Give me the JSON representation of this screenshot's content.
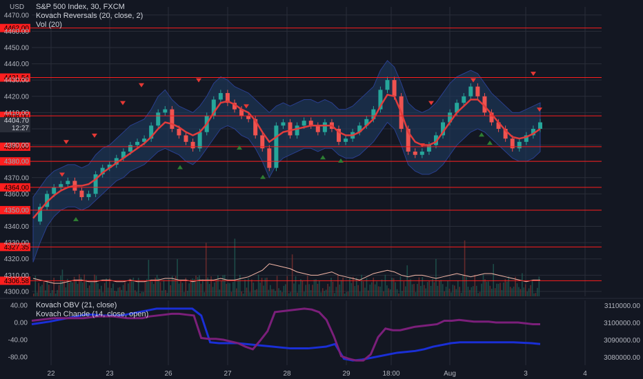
{
  "header": {
    "currency": "USD",
    "symbol_line": "S&P 500 Index, 30, FXCM",
    "indicator_1": "Kovach Reversals (20, close, 2)",
    "indicator_2": "Vol (20)",
    "indicator_3": "Kovach OBV (21, close)",
    "indicator_4": "Kovach Chande (14, close, open)"
  },
  "price_badge": {
    "price": "4404.70",
    "countdown": "12:27"
  },
  "colors": {
    "background": "#131722",
    "grid": "#2a2e39",
    "level_line": "#ff1e1e",
    "up_candle": "#26a69a",
    "down_candle": "#ef5350",
    "band_fill": "#1e3a5f",
    "band_stroke": "#2a3f8f",
    "midline": "#e03c3c",
    "obv_line": "#1a2fd6",
    "chande_line": "#7b1f7a"
  },
  "chart_data": [
    {
      "type": "line",
      "title": "S&P 500 Index, 30, FXCM",
      "ylabel": "USD",
      "y_ticks": [
        "4470.00",
        "4460.00",
        "4450.00",
        "4440.00",
        "4430.00",
        "4420.00",
        "4410.00",
        "4400.00",
        "4390.00",
        "4380.00",
        "4370.00",
        "4360.00",
        "4350.00",
        "4340.00",
        "4330.00",
        "4320.00",
        "4310.00",
        "4300.00"
      ],
      "x_ticks": [
        "22",
        "23",
        "26",
        "27",
        "28",
        "29",
        "18:00",
        "Aug",
        "3",
        "4"
      ],
      "ylim": [
        4297,
        4475
      ],
      "level_lines": [
        "4462.00",
        "4431.54",
        "4408.00",
        "4389.00",
        "4380.00",
        "4364.00",
        "4350.00",
        "4327.35",
        "4306.58"
      ],
      "close": [
        4343,
        4352,
        4360,
        4364,
        4366,
        4368,
        4362,
        4358,
        4360,
        4372,
        4376,
        4378,
        4382,
        4386,
        4390,
        4392,
        4394,
        4402,
        4410,
        4412,
        4400,
        4396,
        4392,
        4388,
        4398,
        4408,
        4418,
        4422,
        4416,
        4412,
        4408,
        4406,
        4396,
        4388,
        4376,
        4402,
        4404,
        4396,
        4402,
        4405,
        4402,
        4398,
        4404,
        4400,
        4392,
        4394,
        4398,
        4402,
        4406,
        4412,
        4424,
        4430,
        4420,
        4400,
        4386,
        4384,
        4386,
        4390,
        4396,
        4404,
        4410,
        4416,
        4420,
        4426,
        4420,
        4410,
        4404,
        4400,
        4394,
        4388,
        4392,
        4396,
        4400,
        4404
      ],
      "midline": [
        4345,
        4350,
        4355,
        4359,
        4362,
        4364,
        4365,
        4365,
        4366,
        4369,
        4373,
        4376,
        4379,
        4382,
        4385,
        4388,
        4391,
        4395,
        4400,
        4404,
        4403,
        4401,
        4398,
        4396,
        4398,
        4403,
        4410,
        4416,
        4417,
        4415,
        4412,
        4410,
        4405,
        4398,
        4392,
        4395,
        4398,
        4399,
        4400,
        4401,
        4402,
        4402,
        4402,
        4402,
        4398,
        4396,
        4396,
        4398,
        4402,
        4406,
        4414,
        4421,
        4420,
        4410,
        4398,
        4392,
        4390,
        4390,
        4392,
        4398,
        4404,
        4410,
        4414,
        4418,
        4418,
        4414,
        4409,
        4404,
        4399,
        4395,
        4394,
        4395,
        4397,
        4400
      ],
      "band_upper": [
        4358,
        4364,
        4370,
        4374,
        4376,
        4378,
        4378,
        4376,
        4378,
        4384,
        4388,
        4390,
        4394,
        4398,
        4402,
        4404,
        4406,
        4412,
        4420,
        4424,
        4418,
        4414,
        4412,
        4410,
        4414,
        4420,
        4428,
        4432,
        4430,
        4426,
        4424,
        4422,
        4418,
        4414,
        4410,
        4414,
        4416,
        4414,
        4416,
        4418,
        4418,
        4416,
        4418,
        4416,
        4412,
        4412,
        4414,
        4418,
        4422,
        4426,
        4436,
        4442,
        4438,
        4428,
        4416,
        4412,
        4410,
        4412,
        4416,
        4422,
        4428,
        4432,
        4434,
        4436,
        4434,
        4428,
        4422,
        4418,
        4414,
        4410,
        4410,
        4412,
        4414,
        4416
      ],
      "band_lower": [
        4318,
        4330,
        4340,
        4346,
        4350,
        4352,
        4352,
        4350,
        4352,
        4356,
        4360,
        4364,
        4368,
        4370,
        4374,
        4376,
        4378,
        4382,
        4386,
        4388,
        4386,
        4384,
        4380,
        4378,
        4382,
        4388,
        4394,
        4400,
        4402,
        4400,
        4396,
        4394,
        4388,
        4380,
        4370,
        4378,
        4382,
        4384,
        4386,
        4388,
        4388,
        4386,
        4388,
        4388,
        4384,
        4382,
        4382,
        4384,
        4388,
        4392,
        4398,
        4404,
        4400,
        4390,
        4378,
        4374,
        4372,
        4372,
        4374,
        4378,
        4384,
        4390,
        4394,
        4398,
        4400,
        4398,
        4394,
        4390,
        4386,
        4382,
        4380,
        4380,
        4382,
        4386
      ],
      "volume_avg": [
        4308,
        4307,
        4306,
        4305,
        4305,
        4306,
        4307,
        4307,
        4306,
        4306,
        4307,
        4307,
        4306,
        4306,
        4307,
        4306,
        4306,
        4307,
        4307,
        4308,
        4308,
        4307,
        4307,
        4306,
        4307,
        4307,
        4307,
        4308,
        4307,
        4307,
        4308,
        4309,
        4311,
        4313,
        4317,
        4316,
        4315,
        4314,
        4312,
        4311,
        4310,
        4310,
        4311,
        4312,
        4310,
        4309,
        4308,
        4307,
        4309,
        4311,
        4312,
        4313,
        4312,
        4310,
        4309,
        4310,
        4310,
        4309,
        4308,
        4309,
        4310,
        4311,
        4310,
        4309,
        4310,
        4311,
        4311,
        4310,
        4309,
        4308,
        4307,
        4306,
        4307,
        4307
      ],
      "reversal_down_markers": [
        4368,
        4388,
        4392,
        4412,
        4423,
        4426,
        4410,
        4386,
        4412,
        4426,
        4430,
        4408
      ],
      "reversal_up_markers": [
        4350,
        4382,
        4394,
        4376,
        4388,
        4386,
        4402,
        4397
      ]
    },
    {
      "type": "line",
      "title": "Kovach OBV (21, close)",
      "y_ticks_left": [
        "40.00",
        "0.00",
        "-40.00",
        "-80.00"
      ],
      "y_ticks_right": [
        "3110000.00",
        "3100000.00",
        "3090000.00",
        "3080000.00"
      ],
      "ylim_left": [
        -95,
        55
      ],
      "series": [
        {
          "name": "Kovach OBV (21, close)",
          "values": [
            0,
            3,
            6,
            10,
            14,
            18,
            22,
            22,
            20,
            20,
            20,
            24,
            28,
            32,
            36,
            36,
            36,
            36,
            36,
            20,
            -42,
            -44,
            -44,
            -44,
            -46,
            -48,
            -50,
            -52,
            -54,
            -56,
            -56,
            -56,
            -54,
            -52,
            -46,
            -80,
            -84,
            -82,
            -78,
            -74,
            -70,
            -66,
            -64,
            -62,
            -58,
            -52,
            -48,
            -44,
            -42,
            -42,
            -42,
            -42,
            -42,
            -42,
            -42,
            -43,
            -44,
            -46
          ]
        },
        {
          "name": "Kovach Chande (14, close, open)",
          "values": [
            8,
            10,
            12,
            14,
            14,
            14,
            14,
            14,
            16,
            18,
            18,
            18,
            16,
            14,
            14,
            14,
            18,
            20,
            22,
            24,
            24,
            22,
            20,
            -32,
            -34,
            -34,
            -36,
            -40,
            -44,
            -52,
            -58,
            -38,
            -16,
            28,
            30,
            32,
            34,
            36,
            34,
            28,
            10,
            -28,
            -74,
            -80,
            -84,
            -84,
            -70,
            -30,
            -10,
            -14,
            -14,
            -10,
            -6,
            -4,
            -2,
            0,
            8,
            8,
            10,
            8,
            6,
            6,
            6,
            4,
            4,
            4,
            4,
            2,
            0,
            0
          ]
        }
      ]
    }
  ]
}
